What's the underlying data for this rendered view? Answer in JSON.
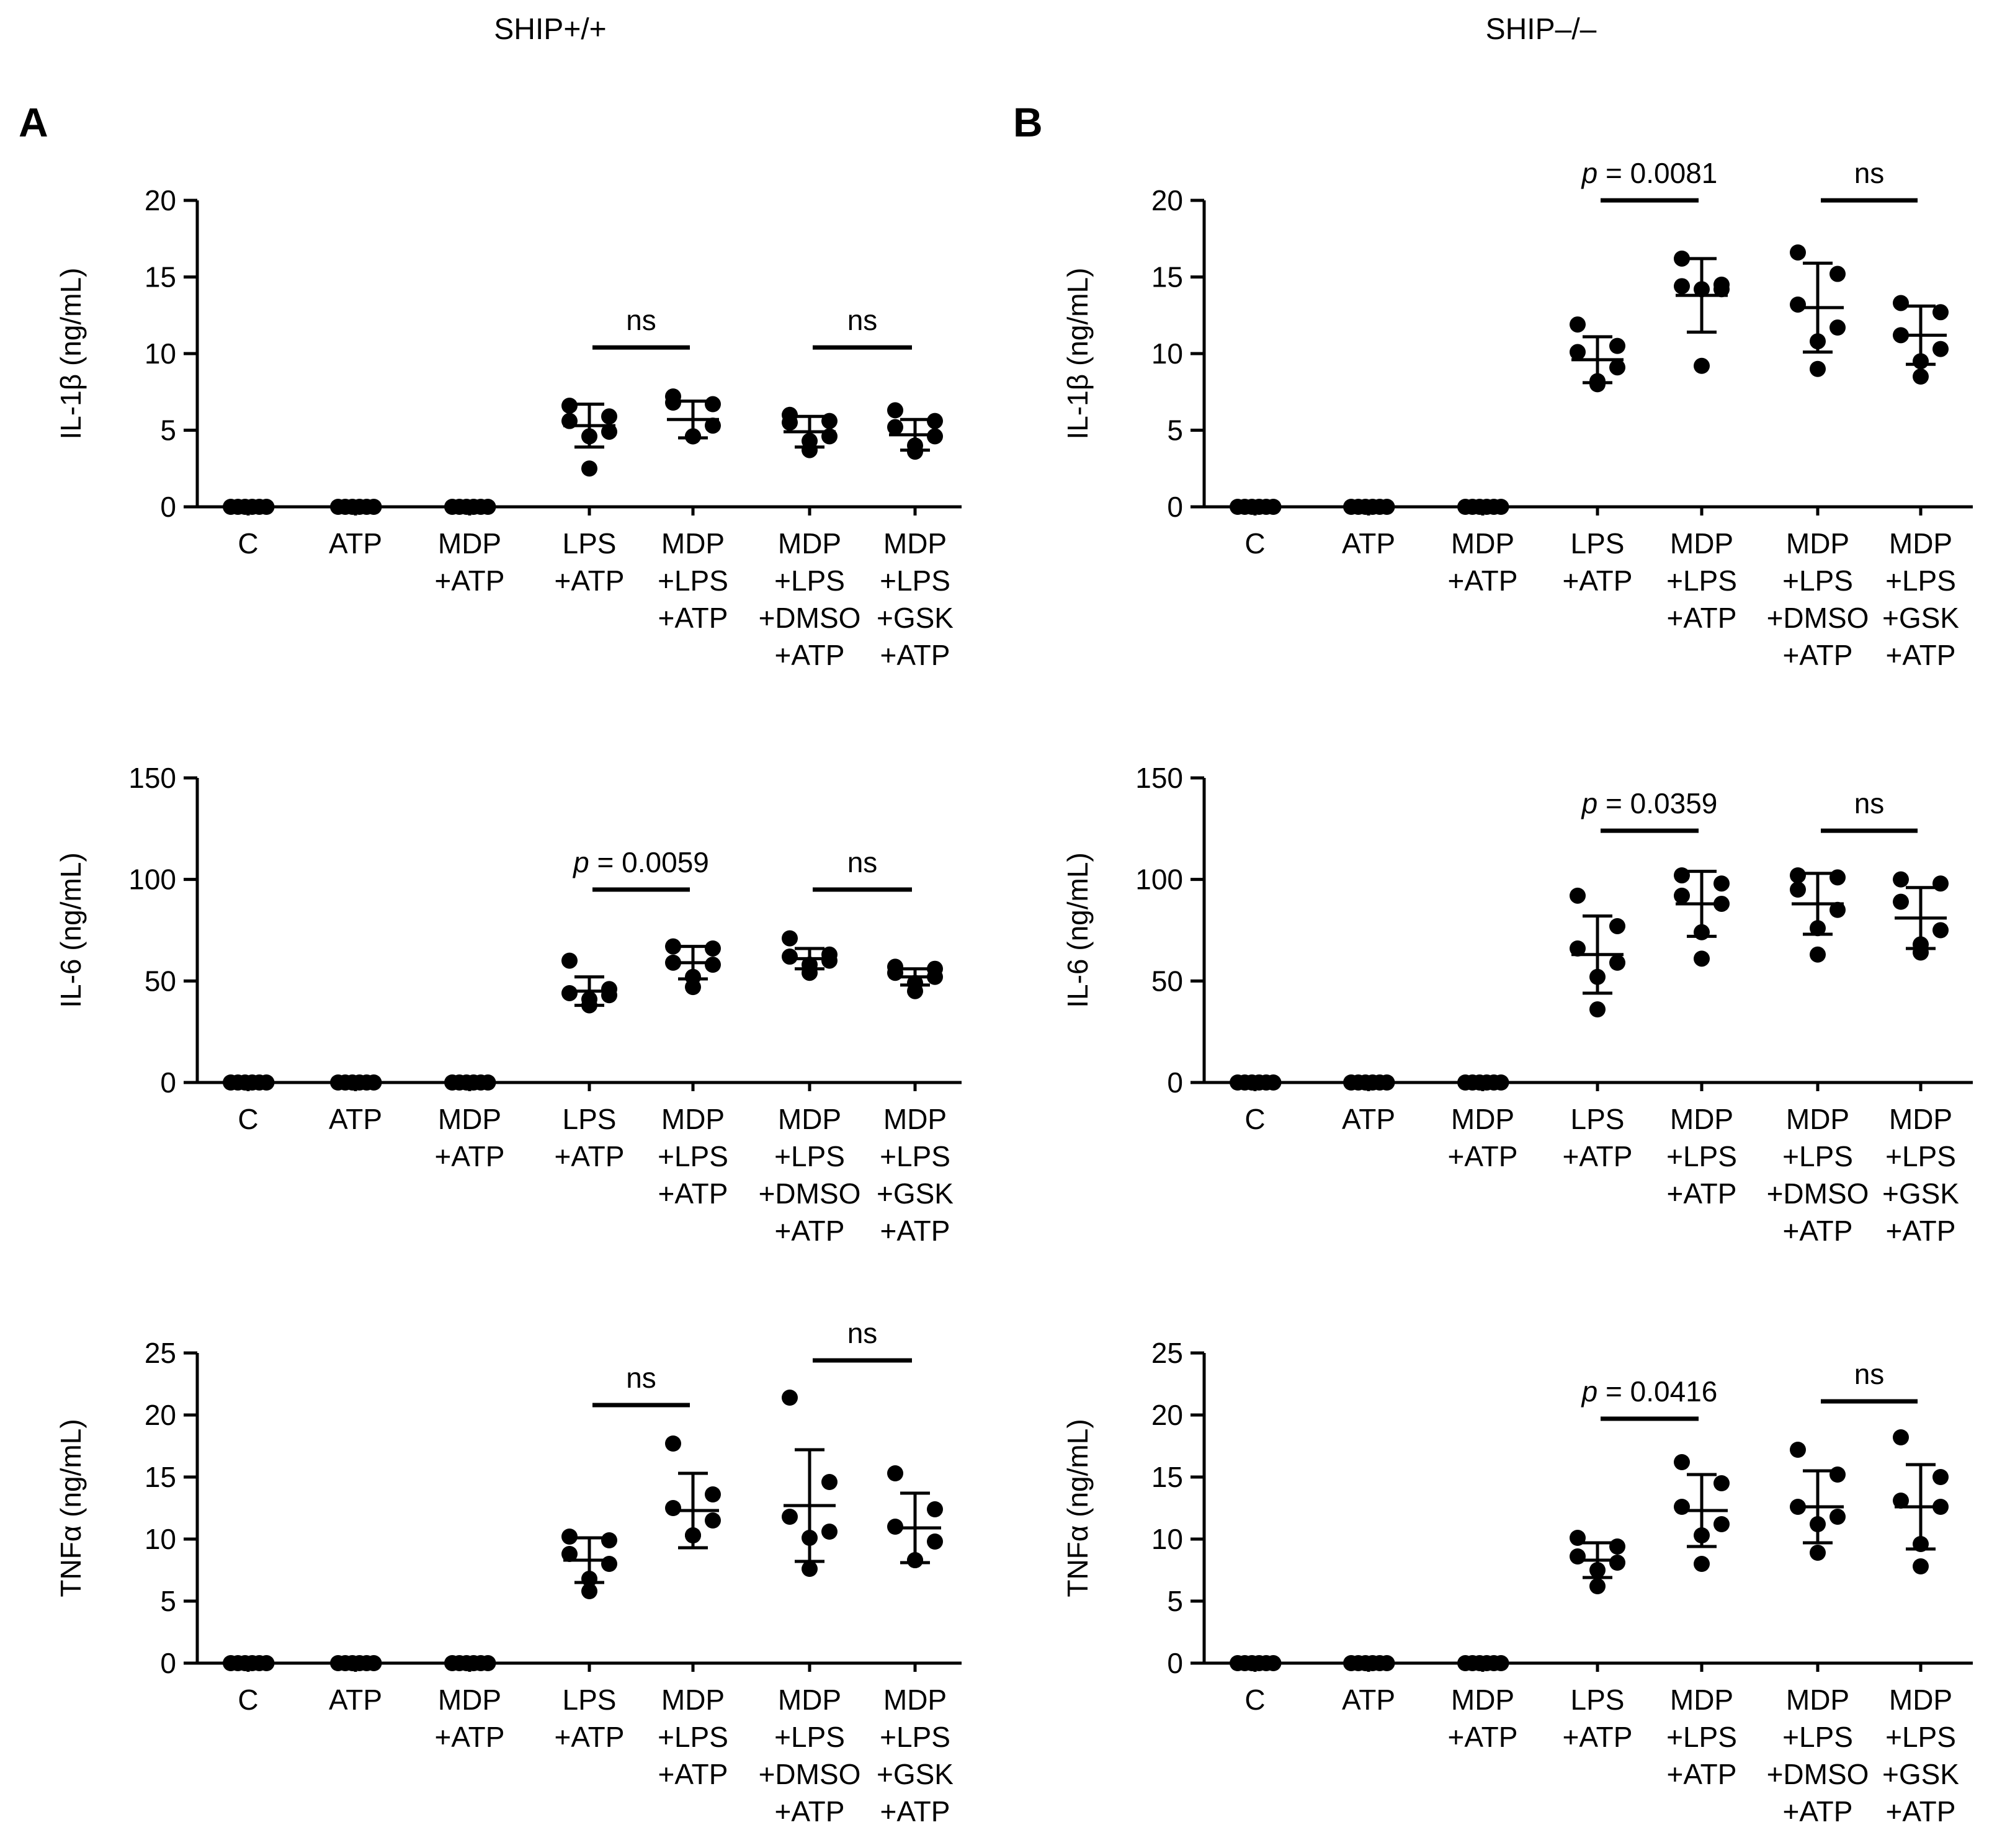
{
  "figure": {
    "column_titles": [
      "SHIP+/+",
      "SHIP–/–"
    ],
    "panel_letters": [
      "A",
      "B"
    ]
  },
  "chart_data": [
    {
      "type": "scatter",
      "panel": "A",
      "row": 0,
      "ylabel": "IL-1β (ng/mL)",
      "ylim": [
        0,
        20
      ],
      "yticks": [
        0,
        5,
        10,
        15,
        20
      ],
      "categories": [
        [
          "C"
        ],
        [
          "ATP"
        ],
        [
          "MDP",
          "+ATP"
        ],
        [
          "LPS",
          "+ATP"
        ],
        [
          "MDP",
          "+LPS",
          "+ATP"
        ],
        [
          "MDP",
          "+LPS",
          "+DMSO",
          "+ATP"
        ],
        [
          "MDP",
          "+LPS",
          "+GSK",
          "+ATP"
        ]
      ],
      "groups": [
        {
          "points": [
            0,
            0,
            0,
            0,
            0,
            0
          ],
          "mean": 0,
          "sd": 0
        },
        {
          "points": [
            0,
            0,
            0,
            0,
            0,
            0
          ],
          "mean": 0,
          "sd": 0
        },
        {
          "points": [
            0,
            0,
            0,
            0,
            0,
            0
          ],
          "mean": 0,
          "sd": 0
        },
        {
          "points": [
            6.6,
            5.9,
            5.6,
            4.9,
            4.6,
            2.5
          ],
          "mean": 5.3,
          "sd": 1.4
        },
        {
          "points": [
            7.2,
            6.7,
            6.8,
            5.3,
            4.6,
            4.6
          ],
          "mean": 5.7,
          "sd": 1.2
        },
        {
          "points": [
            6.0,
            5.6,
            5.5,
            4.6,
            4.3,
            3.7
          ],
          "mean": 4.9,
          "sd": 1.0
        },
        {
          "points": [
            6.3,
            5.6,
            5.2,
            4.6,
            4.0,
            3.6
          ],
          "mean": 4.7,
          "sd": 1.0
        }
      ],
      "comparisons": [
        {
          "from": 3,
          "to": 4,
          "label": "ns",
          "y": 10.4
        },
        {
          "from": 5,
          "to": 6,
          "label": "ns",
          "y": 10.4
        }
      ]
    },
    {
      "type": "scatter",
      "panel": "A",
      "row": 1,
      "ylabel": "IL-6 (ng/mL)",
      "ylim": [
        0,
        150
      ],
      "yticks": [
        0,
        50,
        100,
        150
      ],
      "categories": [
        [
          "C"
        ],
        [
          "ATP"
        ],
        [
          "MDP",
          "+ATP"
        ],
        [
          "LPS",
          "+ATP"
        ],
        [
          "MDP",
          "+LPS",
          "+ATP"
        ],
        [
          "MDP",
          "+LPS",
          "+DMSO",
          "+ATP"
        ],
        [
          "MDP",
          "+LPS",
          "+GSK",
          "+ATP"
        ]
      ],
      "groups": [
        {
          "points": [
            0,
            0,
            0,
            0,
            0,
            0
          ],
          "mean": 0,
          "sd": 0
        },
        {
          "points": [
            0,
            0,
            0,
            0,
            0,
            0
          ],
          "mean": 0,
          "sd": 0
        },
        {
          "points": [
            0,
            0,
            0,
            0,
            0,
            0
          ],
          "mean": 0,
          "sd": 0
        },
        {
          "points": [
            60,
            46,
            44,
            43,
            41,
            38
          ],
          "mean": 45,
          "sd": 7
        },
        {
          "points": [
            67,
            66,
            59,
            58,
            52,
            47
          ],
          "mean": 59,
          "sd": 8
        },
        {
          "points": [
            71,
            63,
            62,
            60,
            58,
            54
          ],
          "mean": 61,
          "sd": 5
        },
        {
          "points": [
            57,
            56,
            54,
            52,
            49,
            45
          ],
          "mean": 52,
          "sd": 4
        }
      ],
      "comparisons": [
        {
          "from": 3,
          "to": 4,
          "label": "p = 0.0059",
          "label_prefix": "p",
          "label_value": "= 0.0059",
          "y": 95
        },
        {
          "from": 5,
          "to": 6,
          "label": "ns",
          "y": 95
        }
      ]
    },
    {
      "type": "scatter",
      "panel": "A",
      "row": 2,
      "ylabel": "TNFα (ng/mL)",
      "ylim": [
        0,
        25
      ],
      "yticks": [
        0,
        5,
        10,
        15,
        20,
        25
      ],
      "categories": [
        [
          "C"
        ],
        [
          "ATP"
        ],
        [
          "MDP",
          "+ATP"
        ],
        [
          "LPS",
          "+ATP"
        ],
        [
          "MDP",
          "+LPS",
          "+ATP"
        ],
        [
          "MDP",
          "+LPS",
          "+DMSO",
          "+ATP"
        ],
        [
          "MDP",
          "+LPS",
          "+GSK",
          "+ATP"
        ]
      ],
      "groups": [
        {
          "points": [
            0,
            0,
            0,
            0,
            0,
            0
          ],
          "mean": 0,
          "sd": 0
        },
        {
          "points": [
            0,
            0,
            0,
            0,
            0,
            0
          ],
          "mean": 0,
          "sd": 0
        },
        {
          "points": [
            0,
            0,
            0,
            0,
            0,
            0
          ],
          "mean": 0,
          "sd": 0
        },
        {
          "points": [
            10.2,
            9.9,
            8.8,
            8.0,
            6.8,
            5.8
          ],
          "mean": 8.3,
          "sd": 1.8
        },
        {
          "points": [
            17.7,
            13.6,
            12.5,
            11.5,
            10.3,
            10.3
          ],
          "mean": 12.3,
          "sd": 3.0
        },
        {
          "points": [
            21.4,
            14.6,
            11.8,
            10.6,
            10.1,
            7.6
          ],
          "mean": 12.7,
          "sd": 4.5
        },
        {
          "points": [
            15.3,
            12.4,
            11.0,
            9.8,
            8.3,
            8.3
          ],
          "mean": 10.9,
          "sd": 2.8
        }
      ],
      "comparisons": [
        {
          "from": 3,
          "to": 4,
          "label": "ns",
          "y": 20.8
        },
        {
          "from": 5,
          "to": 6,
          "label": "ns",
          "y": 24.4
        }
      ]
    },
    {
      "type": "scatter",
      "panel": "B",
      "row": 0,
      "ylabel": "IL-1β (ng/mL)",
      "ylim": [
        0,
        20
      ],
      "yticks": [
        0,
        5,
        10,
        15,
        20
      ],
      "categories": [
        [
          "C"
        ],
        [
          "ATP"
        ],
        [
          "MDP",
          "+ATP"
        ],
        [
          "LPS",
          "+ATP"
        ],
        [
          "MDP",
          "+LPS",
          "+ATP"
        ],
        [
          "MDP",
          "+LPS",
          "+DMSO",
          "+ATP"
        ],
        [
          "MDP",
          "+LPS",
          "+GSK",
          "+ATP"
        ]
      ],
      "groups": [
        {
          "points": [
            0,
            0,
            0,
            0,
            0,
            0
          ],
          "mean": 0,
          "sd": 0
        },
        {
          "points": [
            0,
            0,
            0,
            0,
            0,
            0
          ],
          "mean": 0,
          "sd": 0
        },
        {
          "points": [
            0,
            0,
            0,
            0,
            0,
            0
          ],
          "mean": 0,
          "sd": 0
        },
        {
          "points": [
            11.9,
            10.5,
            10.1,
            9.1,
            8.2,
            8.0
          ],
          "mean": 9.6,
          "sd": 1.5
        },
        {
          "points": [
            16.2,
            14.5,
            14.4,
            14.2,
            14.2,
            9.2
          ],
          "mean": 13.8,
          "sd": 2.4
        },
        {
          "points": [
            16.6,
            15.2,
            13.2,
            11.7,
            10.8,
            9.0
          ],
          "mean": 13.0,
          "sd": 2.9
        },
        {
          "points": [
            13.3,
            12.7,
            11.2,
            10.3,
            9.5,
            8.5
          ],
          "mean": 11.2,
          "sd": 1.9
        }
      ],
      "comparisons": [
        {
          "from": 3,
          "to": 4,
          "label": "p = 0.0081",
          "label_prefix": "p",
          "label_value": "= 0.0081",
          "y": 20.0
        },
        {
          "from": 5,
          "to": 6,
          "label": "ns",
          "y": 20.0
        }
      ]
    },
    {
      "type": "scatter",
      "panel": "B",
      "row": 1,
      "ylabel": "IL-6 (ng/mL)",
      "ylim": [
        0,
        150
      ],
      "yticks": [
        0,
        50,
        100,
        150
      ],
      "categories": [
        [
          "C"
        ],
        [
          "ATP"
        ],
        [
          "MDP",
          "+ATP"
        ],
        [
          "LPS",
          "+ATP"
        ],
        [
          "MDP",
          "+LPS",
          "+ATP"
        ],
        [
          "MDP",
          "+LPS",
          "+DMSO",
          "+ATP"
        ],
        [
          "MDP",
          "+LPS",
          "+GSK",
          "+ATP"
        ]
      ],
      "groups": [
        {
          "points": [
            0,
            0,
            0,
            0,
            0,
            0
          ],
          "mean": 0,
          "sd": 0
        },
        {
          "points": [
            0,
            0,
            0,
            0,
            0,
            0
          ],
          "mean": 0,
          "sd": 0
        },
        {
          "points": [
            0,
            0,
            0,
            0,
            0,
            0
          ],
          "mean": 0,
          "sd": 0
        },
        {
          "points": [
            92,
            77,
            66,
            59,
            52,
            36
          ],
          "mean": 63,
          "sd": 19
        },
        {
          "points": [
            102,
            98,
            92,
            88,
            74,
            61
          ],
          "mean": 88,
          "sd": 16
        },
        {
          "points": [
            102,
            101,
            95,
            85,
            76,
            63
          ],
          "mean": 88,
          "sd": 15
        },
        {
          "points": [
            100,
            98,
            89,
            75,
            68,
            64
          ],
          "mean": 81,
          "sd": 15
        }
      ],
      "comparisons": [
        {
          "from": 3,
          "to": 4,
          "label": "p = 0.0359",
          "label_prefix": "p",
          "label_value": "= 0.0359",
          "y": 124
        },
        {
          "from": 5,
          "to": 6,
          "label": "ns",
          "y": 124
        }
      ]
    },
    {
      "type": "scatter",
      "panel": "B",
      "row": 2,
      "ylabel": "TNFα (ng/mL)",
      "ylim": [
        0,
        25
      ],
      "yticks": [
        0,
        5,
        10,
        15,
        20,
        25
      ],
      "categories": [
        [
          "C"
        ],
        [
          "ATP"
        ],
        [
          "MDP",
          "+ATP"
        ],
        [
          "LPS",
          "+ATP"
        ],
        [
          "MDP",
          "+LPS",
          "+ATP"
        ],
        [
          "MDP",
          "+LPS",
          "+DMSO",
          "+ATP"
        ],
        [
          "MDP",
          "+LPS",
          "+GSK",
          "+ATP"
        ]
      ],
      "groups": [
        {
          "points": [
            0,
            0,
            0,
            0,
            0,
            0
          ],
          "mean": 0,
          "sd": 0
        },
        {
          "points": [
            0,
            0,
            0,
            0,
            0,
            0
          ],
          "mean": 0,
          "sd": 0
        },
        {
          "points": [
            0,
            0,
            0,
            0,
            0,
            0
          ],
          "mean": 0,
          "sd": 0
        },
        {
          "points": [
            10.1,
            9.4,
            8.6,
            8.1,
            7.5,
            6.2
          ],
          "mean": 8.3,
          "sd": 1.4
        },
        {
          "points": [
            16.2,
            14.5,
            12.6,
            11.2,
            10.3,
            8.0
          ],
          "mean": 12.3,
          "sd": 2.9
        },
        {
          "points": [
            17.2,
            15.2,
            12.6,
            11.8,
            11.2,
            8.9
          ],
          "mean": 12.6,
          "sd": 2.9
        },
        {
          "points": [
            18.2,
            15.0,
            13.1,
            12.6,
            9.6,
            7.8
          ],
          "mean": 12.6,
          "sd": 3.4
        }
      ],
      "comparisons": [
        {
          "from": 3,
          "to": 4,
          "label": "p = 0.0416",
          "label_prefix": "p",
          "label_value": "= 0.0416",
          "y": 19.7
        },
        {
          "from": 5,
          "to": 6,
          "label": "ns",
          "y": 21.1
        }
      ]
    }
  ]
}
